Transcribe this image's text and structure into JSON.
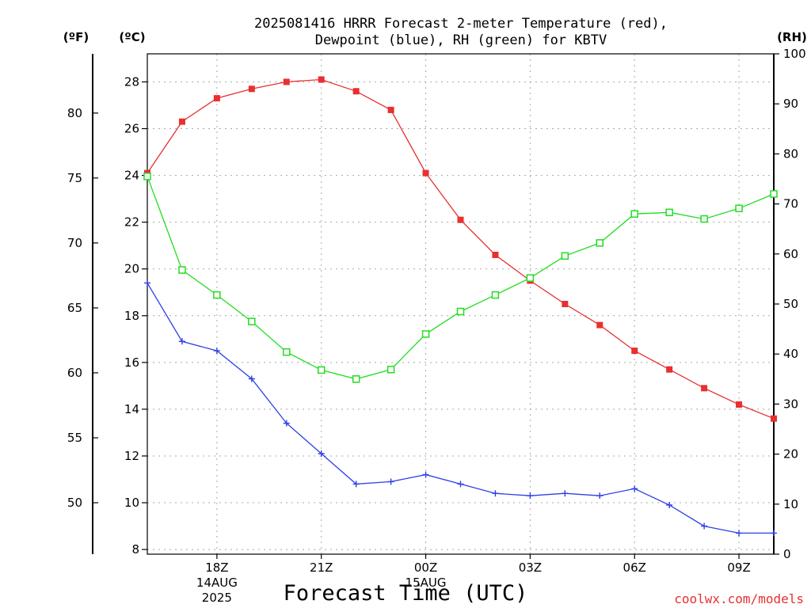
{
  "chart_data": {
    "type": "line",
    "title_lines": [
      "2025081416 HRRR Forecast 2-meter Temperature (red),",
      "Dewpoint (blue), RH (green) for KBTV"
    ],
    "xlabel": "Forecast Time (UTC)",
    "credit": "coolwx.com/models",
    "units": {
      "fahrenheit": "(ºF)",
      "celsius": "(ºC)",
      "rh": "(RH)"
    },
    "x_hours_utc": [
      16,
      17,
      18,
      19,
      20,
      21,
      22,
      23,
      24,
      25,
      26,
      27,
      28,
      29,
      30,
      31,
      32,
      33,
      34
    ],
    "x_ticks": [
      {
        "hour": 18,
        "label": "18Z",
        "date": "14AUG",
        "year": "2025"
      },
      {
        "hour": 21,
        "label": "21Z",
        "date": "",
        "year": ""
      },
      {
        "hour": 24,
        "label": "00Z",
        "date": "15AUG",
        "year": ""
      },
      {
        "hour": 27,
        "label": "03Z",
        "date": "",
        "year": ""
      },
      {
        "hour": 30,
        "label": "06Z",
        "date": "",
        "year": ""
      },
      {
        "hour": 33,
        "label": "09Z",
        "date": "",
        "year": ""
      }
    ],
    "xlim": [
      16,
      34
    ],
    "ylim_celsius": [
      7.8,
      29.2
    ],
    "ylim_rh": [
      0,
      100
    ],
    "y_ticks_celsius": [
      8,
      10,
      12,
      14,
      16,
      18,
      20,
      22,
      24,
      26,
      28
    ],
    "y_ticks_fahrenheit": [
      50,
      55,
      60,
      65,
      70,
      75,
      80
    ],
    "y_ticks_rh": [
      0,
      10,
      20,
      30,
      40,
      50,
      60,
      70,
      80,
      90,
      100
    ],
    "grid": true,
    "series": [
      {
        "name": "Temperature",
        "axis": "celsius",
        "color": "#e83030",
        "marker": "filled-square",
        "values": [
          24.1,
          26.3,
          27.3,
          27.7,
          28.0,
          28.1,
          27.6,
          26.8,
          24.1,
          22.1,
          20.6,
          19.5,
          18.5,
          17.6,
          16.5,
          15.7,
          14.9,
          14.2,
          13.6
        ]
      },
      {
        "name": "Dewpoint",
        "axis": "celsius",
        "color": "#2e3fe8",
        "marker": "plus",
        "values": [
          19.4,
          16.9,
          16.5,
          15.3,
          13.4,
          12.1,
          10.8,
          10.9,
          11.2,
          10.8,
          10.4,
          10.3,
          10.4,
          10.3,
          10.6,
          9.9,
          9.0,
          8.7,
          8.7
        ]
      },
      {
        "name": "RH",
        "axis": "rh",
        "color": "#22dd22",
        "marker": "open-square",
        "values": [
          75.5,
          56.8,
          51.8,
          46.5,
          40.4,
          36.8,
          35.0,
          36.9,
          44.0,
          48.5,
          51.8,
          55.2,
          59.6,
          62.2,
          68.0,
          68.3,
          67.0,
          69.1,
          72.0
        ]
      }
    ]
  }
}
